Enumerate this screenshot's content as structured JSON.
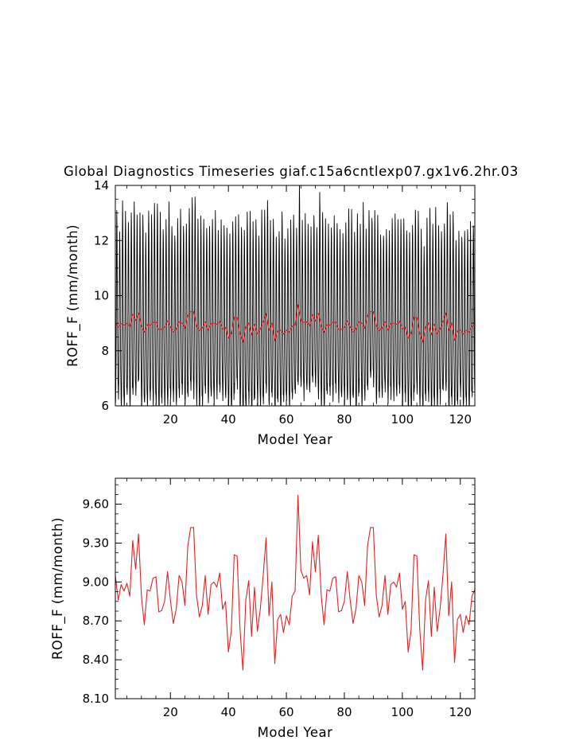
{
  "title": "Global Diagnostics Timeseries giaf.c15a6cntlexp07.gx1v6.2hr.03",
  "chart_data": [
    {
      "type": "line",
      "xlabel": "Model Year",
      "ylabel": "ROFF_F (mm/month)",
      "xlim": [
        1,
        125
      ],
      "ylim": [
        6,
        14
      ],
      "xticks": [
        20,
        40,
        60,
        80,
        100,
        120
      ],
      "yticks": [
        6,
        8,
        10,
        12,
        14
      ],
      "ytick_labels": [
        "6",
        "8",
        "10",
        "12",
        "14"
      ],
      "series": [
        {
          "color": "#000000",
          "resolution": "monthly",
          "seasonal_cycle_mm_month": [
            6.9,
            6.6,
            7.0,
            8.0,
            9.6,
            11.3,
            12.3,
            11.8,
            10.4,
            8.9,
            7.7,
            7.1
          ]
        },
        {
          "color": "#e8201f",
          "resolution": "annual mean",
          "values_ref": "annual_means"
        }
      ]
    },
    {
      "type": "line",
      "xlabel": "Model Year",
      "ylabel": "ROFF_F (mm/month)",
      "xlim": [
        1,
        125
      ],
      "ylim": [
        8.1,
        9.8
      ],
      "xticks": [
        20,
        40,
        60,
        80,
        100,
        120
      ],
      "yticks": [
        8.1,
        8.4,
        8.7,
        9.0,
        9.3,
        9.6
      ],
      "ytick_labels": [
        "8.10",
        "8.40",
        "8.70",
        "9.00",
        "9.30",
        "9.60"
      ],
      "series": [
        {
          "color": "#e8201f",
          "x_start": 1,
          "values": [
            9.05,
            8.86,
            8.98,
            8.93,
            8.99,
            8.89,
            9.32,
            9.1,
            9.37,
            8.89,
            8.67,
            8.94,
            8.93,
            9.03,
            9.04,
            8.77,
            8.78,
            8.85,
            9.08,
            8.86,
            8.68,
            8.79,
            9.05,
            9.0,
            8.82,
            9.28,
            9.42,
            9.42,
            8.9,
            8.73,
            8.82,
            9.05,
            8.75,
            8.98,
            9.0,
            8.96,
            9.07,
            8.79,
            8.85,
            8.46,
            8.62,
            9.21,
            9.2,
            8.64,
            8.32,
            8.86,
            9.01,
            8.58,
            8.96,
            8.62,
            8.79,
            9.05,
            9.34,
            8.74,
            9.0,
            8.37,
            8.71,
            8.75,
            8.61,
            8.74,
            8.67,
            8.89,
            8.93,
            9.67,
            9.09,
            9.03,
            9.05,
            8.9,
            9.31,
            9.08,
            9.36,
            8.9,
            8.67,
            8.94,
            8.93,
            9.03,
            9.04,
            8.77,
            8.78,
            8.85,
            9.08,
            8.86,
            8.68,
            8.79,
            9.05,
            9.0,
            8.82,
            9.28,
            9.42,
            9.42,
            8.9,
            8.73,
            8.82,
            9.05,
            8.75,
            8.98,
            9.0,
            8.96,
            9.07,
            8.79,
            8.85,
            8.46,
            8.62,
            9.21,
            9.2,
            8.64,
            8.32,
            8.86,
            9.01,
            8.58,
            8.96,
            8.62,
            8.79,
            9.05,
            9.37,
            8.74,
            9.0,
            8.38,
            8.71,
            8.75,
            8.61,
            8.74,
            8.67,
            8.89,
            8.94
          ]
        }
      ]
    }
  ]
}
